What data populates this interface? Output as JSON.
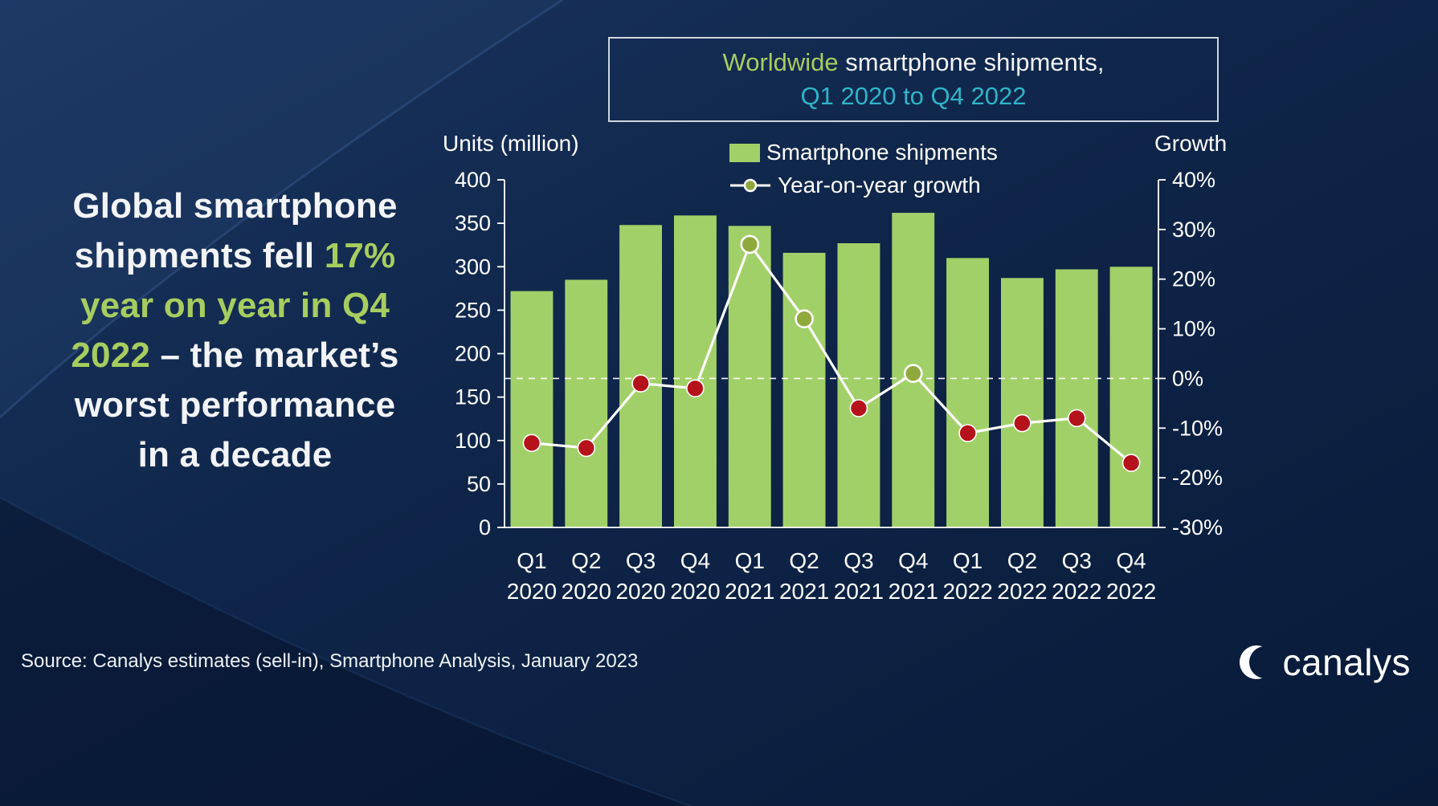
{
  "colors": {
    "bg1": "#1b3660",
    "bg2": "#0f2549",
    "bg3": "#081a38",
    "green": "#a6cd5f",
    "cyan": "#2fb5c8",
    "bar": "#a2d068",
    "pos": "#8fa93c",
    "neg": "#b5121b",
    "text": "#f2f4f7",
    "border": "#ccd6e0"
  },
  "title_box": {
    "line1_highlight": "Worldwide",
    "line1_rest": " smartphone shipments,",
    "line2": "Q1 2020 to Q4 2022"
  },
  "headline": {
    "l1": "Global smartphone",
    "l2a": "shipments fell ",
    "l2b": "17%",
    "l3": "year on year in Q4",
    "l4a": "2022",
    "l4b": " – the market’s",
    "l5": "worst performance",
    "l6": "in a decade"
  },
  "source": "Source: Canalys estimates (sell-in), Smartphone Analysis, January 2023",
  "logo_text": "canalys",
  "chart_data": {
    "type": "bar+line-combo",
    "title": "Worldwide smartphone shipments, Q1 2020 to Q4 2022",
    "categories": [
      "Q1 2020",
      "Q2 2020",
      "Q3 2020",
      "Q4 2020",
      "Q1 2021",
      "Q2 2021",
      "Q3 2021",
      "Q4 2021",
      "Q1 2022",
      "Q2 2022",
      "Q3 2022",
      "Q4 2022"
    ],
    "series": [
      {
        "name": "Smartphone shipments",
        "kind": "bar",
        "axis": "left",
        "unit": "million units",
        "values": [
          272,
          285,
          348,
          359,
          347,
          316,
          327,
          362,
          310,
          287,
          297,
          300
        ]
      },
      {
        "name": "Year-on-year growth",
        "kind": "line",
        "axis": "right",
        "unit": "%",
        "values": [
          -13,
          -14,
          -1,
          -2,
          27,
          12,
          -6,
          1,
          -11,
          -9,
          -8,
          -17
        ]
      }
    ],
    "left_axis": {
      "label": "Units (million)",
      "min": 0,
      "max": 400,
      "step": 50
    },
    "right_axis": {
      "label": "Growth",
      "min": -30,
      "max": 40,
      "step": 10,
      "suffix": "%"
    },
    "zero_line_dashed": true,
    "legend_position": "top-center",
    "grid": "off"
  }
}
